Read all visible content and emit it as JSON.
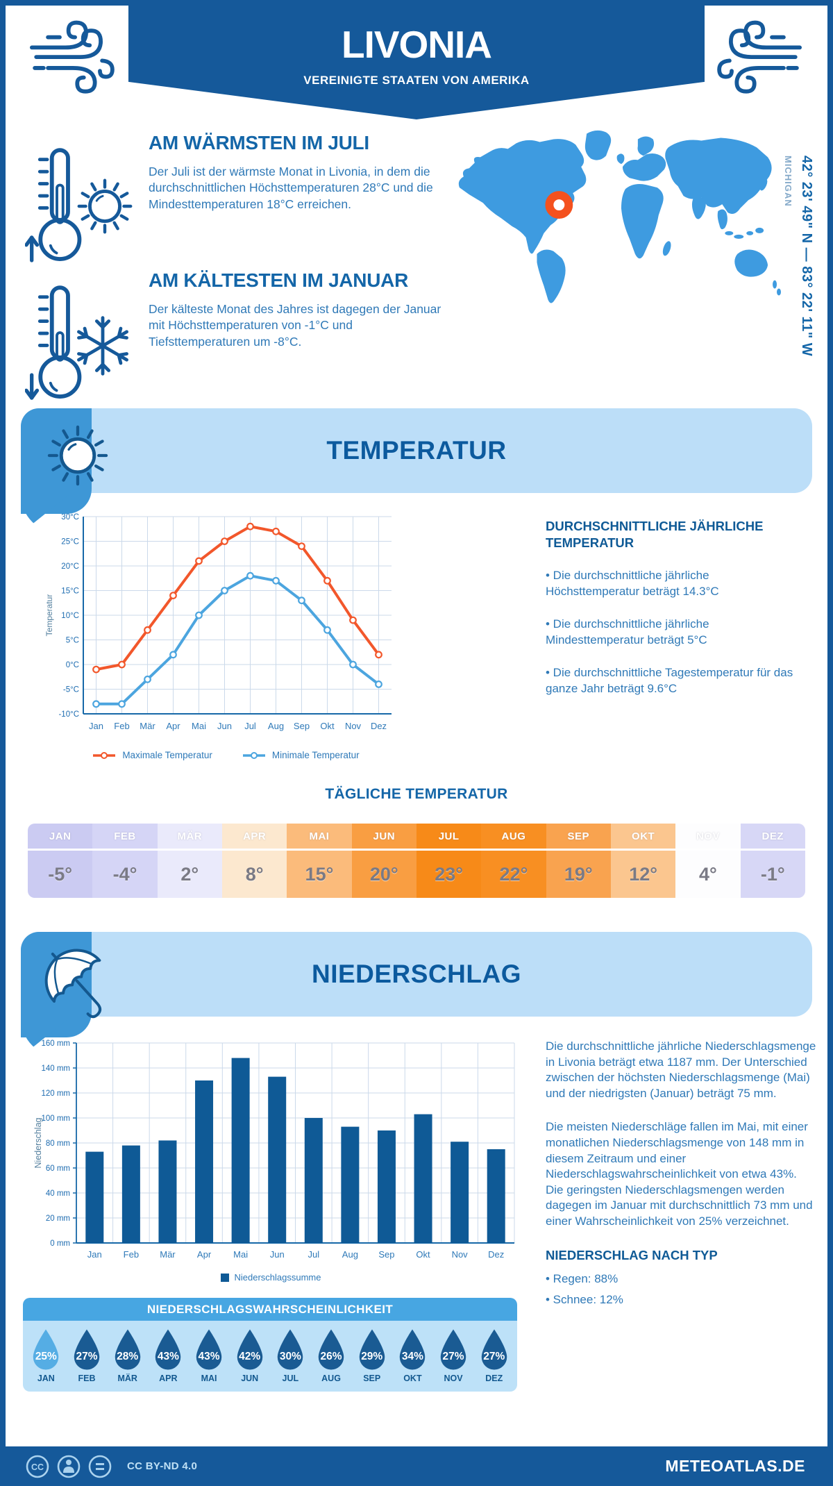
{
  "page": {
    "title": "LIVONIA",
    "subtitle": "VEREINIGTE STAATEN VON AMERIKA"
  },
  "colors": {
    "primary": "#15599A",
    "heading": "#1466A8",
    "body_text": "#2F79B7",
    "banner_bg": "#BCDEF8",
    "corner_bg": "#3E97D6",
    "map_fill": "#3E9BE0",
    "marker": "#F4511E"
  },
  "warmest": {
    "heading": "AM WÄRMSTEN IM JULI",
    "text": "Der Juli ist der wärmste Monat in Livonia, in dem die durchschnittlichen Höchsttemperaturen 28°C und die Mindesttemperaturen 18°C erreichen."
  },
  "coldest": {
    "heading": "AM KÄLTESTEN IM JANUAR",
    "text": "Der kälteste Monat des Jahres ist dagegen der Januar mit Höchsttemperaturen von -1°C und Tiefsttemperaturen um -8°C."
  },
  "map": {
    "region": "MICHIGAN",
    "coordinates": "42° 23' 49\" N — 83° 22' 11\" W"
  },
  "temperature_section": {
    "title": "TEMPERATUR",
    "info_heading": "DURCHSCHNITTLICHE JÄHRLICHE TEMPERATUR",
    "bullets": [
      "• Die durchschnittliche jährliche Höchsttemperatur beträgt 14.3°C",
      "• Die durchschnittliche jährliche Mindesttemperatur beträgt 5°C",
      "• Die durchschnittliche Tagestemperatur für das ganze Jahr beträgt 9.6°C"
    ]
  },
  "precipitation_section": {
    "title": "NIEDERSCHLAG",
    "paragraph_1": "Die durchschnittliche jährliche Niederschlagsmenge in Livonia beträgt etwa 1187 mm. Der Unterschied zwischen der höchsten Niederschlagsmenge (Mai) und der niedrigsten (Januar) beträgt 75 mm.",
    "paragraph_2": "Die meisten Niederschläge fallen im Mai, mit einer monatlichen Niederschlagsmenge von 148 mm in diesem Zeitraum und einer Niederschlagswahrscheinlichkeit von etwa 43%. Die geringsten Niederschlagsmengen werden dagegen im Januar mit durchschnittlich 73 mm und einer Wahrscheinlichkeit von 25% verzeichnet.",
    "type_heading": "NIEDERSCHLAG NACH TYP",
    "types": [
      "• Regen: 88%",
      "• Schnee: 12%"
    ]
  },
  "footer": {
    "license": "CC BY-ND 4.0",
    "site": "METEOATLAS.DE"
  },
  "chart_data": [
    {
      "id": "temperature_line",
      "type": "line",
      "categories": [
        "Jan",
        "Feb",
        "Mär",
        "Apr",
        "Mai",
        "Jun",
        "Jul",
        "Aug",
        "Sep",
        "Okt",
        "Nov",
        "Dez"
      ],
      "series": [
        {
          "name": "Maximale Temperatur",
          "color": "#F2572B",
          "values": [
            -1,
            0,
            7,
            14,
            21,
            25,
            28,
            27,
            24,
            17,
            9,
            2
          ]
        },
        {
          "name": "Minimale Temperatur",
          "color": "#4CA5DF",
          "values": [
            -8,
            -8,
            -3,
            2,
            10,
            15,
            18,
            17,
            13,
            7,
            0,
            -4
          ]
        }
      ],
      "ylabel": "Temperatur",
      "ylim": [
        -10,
        30
      ],
      "ytick_step": 5,
      "ytick_suffix": "°C",
      "grid": true,
      "legend_position": "bottom"
    },
    {
      "id": "precipitation_bar",
      "type": "bar",
      "categories": [
        "Jan",
        "Feb",
        "Mär",
        "Apr",
        "Mai",
        "Jun",
        "Jul",
        "Aug",
        "Sep",
        "Okt",
        "Nov",
        "Dez"
      ],
      "series": [
        {
          "name": "Niederschlagssumme",
          "color": "#0F5A96",
          "values": [
            73,
            78,
            82,
            130,
            148,
            133,
            100,
            93,
            90,
            103,
            81,
            75
          ]
        }
      ],
      "ylabel": "Niederschlag",
      "ylim": [
        0,
        160
      ],
      "ytick_step": 20,
      "ytick_suffix": " mm",
      "grid": true,
      "legend_position": "bottom"
    },
    {
      "id": "daily_temperature",
      "type": "table",
      "title": "TÄGLICHE TEMPERATUR",
      "categories": [
        "JAN",
        "FEB",
        "MÄR",
        "APR",
        "MAI",
        "JUN",
        "JUL",
        "AUG",
        "SEP",
        "OKT",
        "NOV",
        "DEZ"
      ],
      "values": [
        -5,
        -4,
        2,
        8,
        15,
        20,
        23,
        22,
        19,
        12,
        4,
        -1
      ],
      "value_suffix": "°",
      "cell_colors": [
        "#CBCBF2",
        "#D5D5F6",
        "#EAEAFB",
        "#FCE8CF",
        "#FBBB7B",
        "#F99E42",
        "#F78A18",
        "#F88F22",
        "#F9A34F",
        "#FBC68F",
        "#FDFDFE",
        "#D7D7F6"
      ]
    },
    {
      "id": "precipitation_probability",
      "type": "table",
      "title": "NIEDERSCHLAGSWAHRSCHEINLICHKEIT",
      "categories": [
        "JAN",
        "FEB",
        "MÄR",
        "APR",
        "MAI",
        "JUN",
        "JUL",
        "AUG",
        "SEP",
        "OKT",
        "NOV",
        "DEZ"
      ],
      "values": [
        25,
        27,
        28,
        43,
        43,
        42,
        30,
        26,
        29,
        34,
        27,
        27
      ],
      "value_suffix": "%",
      "drop_color": "#1A5B93",
      "drop_color_min": "#55ADE4",
      "min_index": 0
    }
  ]
}
